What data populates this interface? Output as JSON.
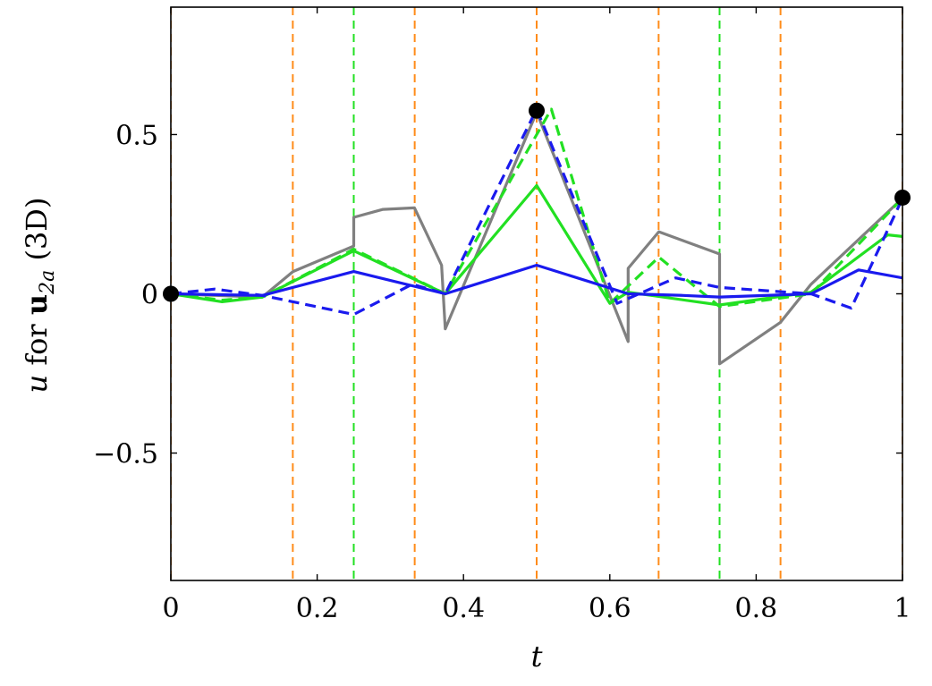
{
  "chart_data": {
    "type": "line",
    "xlabel": "t",
    "ylabel": {
      "var": "u",
      "mid": " for ",
      "bold": "u",
      "sub": "2a",
      "tail": " (3D)"
    },
    "xlim": [
      0,
      1
    ],
    "ylim": [
      -0.9,
      0.9
    ],
    "x_ticks": [
      {
        "value": 0,
        "label": "0"
      },
      {
        "value": 0.2,
        "label": "0.2"
      },
      {
        "value": 0.4,
        "label": "0.4"
      },
      {
        "value": 0.6,
        "label": "0.6"
      },
      {
        "value": 0.8,
        "label": "0.8"
      },
      {
        "value": 1,
        "label": "1"
      }
    ],
    "y_ticks": [
      {
        "value": -0.5,
        "label": "−0.5"
      },
      {
        "value": 0,
        "label": "0"
      },
      {
        "value": 0.5,
        "label": "0.5"
      }
    ],
    "grid": false,
    "legend": "none",
    "vertical_lines": [
      {
        "x": 0,
        "color": "#ff8c1a"
      },
      {
        "x": 0.1667,
        "color": "#ff8c1a"
      },
      {
        "x": 0.3333,
        "color": "#ff8c1a"
      },
      {
        "x": 0.5,
        "color": "#ff8c1a"
      },
      {
        "x": 0.6667,
        "color": "#ff8c1a"
      },
      {
        "x": 0.8333,
        "color": "#ff8c1a"
      },
      {
        "x": 1,
        "color": "#ff8c1a"
      },
      {
        "x": 0.25,
        "color": "#22e022"
      },
      {
        "x": 0.75,
        "color": "#22e022"
      }
    ],
    "series": [
      {
        "color": "#808080",
        "style": "solid",
        "points": [
          [
            0,
            0
          ],
          [
            0.125,
            -0.01
          ],
          [
            0.167,
            0.07
          ],
          [
            0.25,
            0.15
          ],
          [
            0.25,
            0.24
          ],
          [
            0.29,
            0.265
          ],
          [
            0.333,
            0.27
          ],
          [
            0.37,
            0.09
          ],
          [
            0.375,
            -0.11
          ],
          [
            0.5,
            0.57
          ],
          [
            0.625,
            -0.15
          ],
          [
            0.625,
            0.08
          ],
          [
            0.667,
            0.195
          ],
          [
            0.75,
            0.125
          ],
          [
            0.75,
            -0.22
          ],
          [
            0.833,
            -0.09
          ],
          [
            0.875,
            0.03
          ],
          [
            1,
            0.3
          ]
        ]
      },
      {
        "color": "#22e022",
        "style": "solid",
        "points": [
          [
            0,
            0
          ],
          [
            0.07,
            -0.025
          ],
          [
            0.125,
            -0.01
          ],
          [
            0.25,
            0.135
          ],
          [
            0.375,
            0.0
          ],
          [
            0.5,
            0.34
          ],
          [
            0.6,
            -0.03
          ],
          [
            0.625,
            0.005
          ],
          [
            0.75,
            -0.035
          ],
          [
            0.875,
            0.005
          ],
          [
            0.98,
            0.185
          ],
          [
            1,
            0.18
          ]
        ]
      },
      {
        "color": "#22e022",
        "style": "dashed",
        "points": [
          [
            0,
            0
          ],
          [
            0.07,
            -0.02
          ],
          [
            0.125,
            -0.01
          ],
          [
            0.25,
            0.14
          ],
          [
            0.375,
            0.0
          ],
          [
            0.52,
            0.58
          ],
          [
            0.6,
            -0.03
          ],
          [
            0.667,
            0.115
          ],
          [
            0.75,
            -0.04
          ],
          [
            0.875,
            0.0
          ],
          [
            1,
            0.3
          ]
        ]
      },
      {
        "color": "#1a1aee",
        "style": "solid",
        "points": [
          [
            0,
            0
          ],
          [
            0.125,
            -0.005
          ],
          [
            0.25,
            0.07
          ],
          [
            0.375,
            0.0
          ],
          [
            0.5,
            0.09
          ],
          [
            0.625,
            0.0
          ],
          [
            0.7,
            -0.005
          ],
          [
            0.75,
            -0.01
          ],
          [
            0.875,
            0.0
          ],
          [
            0.94,
            0.075
          ],
          [
            1,
            0.05
          ]
        ]
      },
      {
        "color": "#1a1aee",
        "style": "dashed",
        "points": [
          [
            0,
            0
          ],
          [
            0.06,
            0.015
          ],
          [
            0.125,
            -0.005
          ],
          [
            0.25,
            -0.065
          ],
          [
            0.33,
            0.03
          ],
          [
            0.375,
            0.0
          ],
          [
            0.5,
            0.58
          ],
          [
            0.61,
            -0.03
          ],
          [
            0.69,
            0.05
          ],
          [
            0.75,
            0.02
          ],
          [
            0.875,
            0.0
          ],
          [
            0.93,
            -0.045
          ],
          [
            1,
            0.3
          ]
        ]
      }
    ],
    "markers": [
      [
        0,
        0
      ],
      [
        0.5,
        0.575
      ],
      [
        1,
        0.302
      ]
    ]
  }
}
